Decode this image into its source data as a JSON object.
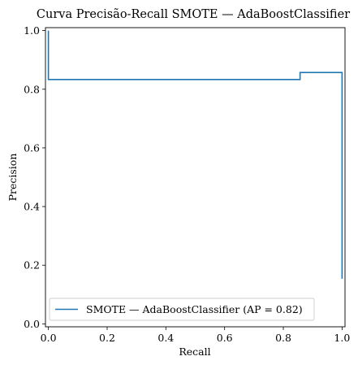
{
  "chart_data": {
    "type": "line",
    "drawstyle": "steps-post",
    "title": "Curva Precisão-Recall SMOTE — AdaBoostClassifier",
    "xlabel": "Recall",
    "ylabel": "Precision",
    "xlim": [
      -0.01,
      1.01
    ],
    "ylim": [
      -0.01,
      1.01
    ],
    "xticks": [
      0.0,
      0.2,
      0.4,
      0.6,
      0.8,
      1.0
    ],
    "yticks": [
      0.0,
      0.2,
      0.4,
      0.6,
      0.8,
      1.0
    ],
    "xtick_labels": [
      "0.0",
      "0.2",
      "0.4",
      "0.6",
      "0.8",
      "1.0"
    ],
    "ytick_labels": [
      "0.0",
      "0.2",
      "0.4",
      "0.6",
      "0.8",
      "1.0"
    ],
    "grid": false,
    "legend_position": "lower-left",
    "series": [
      {
        "name": "SMOTE — AdaBoostClassifier (AP = 0.82)",
        "color": "#1f77b4",
        "x": [
          1.0,
          1.0,
          0.857,
          0.714,
          0.0,
          0.0
        ],
        "y": [
          0.154,
          0.7,
          0.857,
          0.833,
          0.833,
          1.0
        ]
      }
    ]
  }
}
